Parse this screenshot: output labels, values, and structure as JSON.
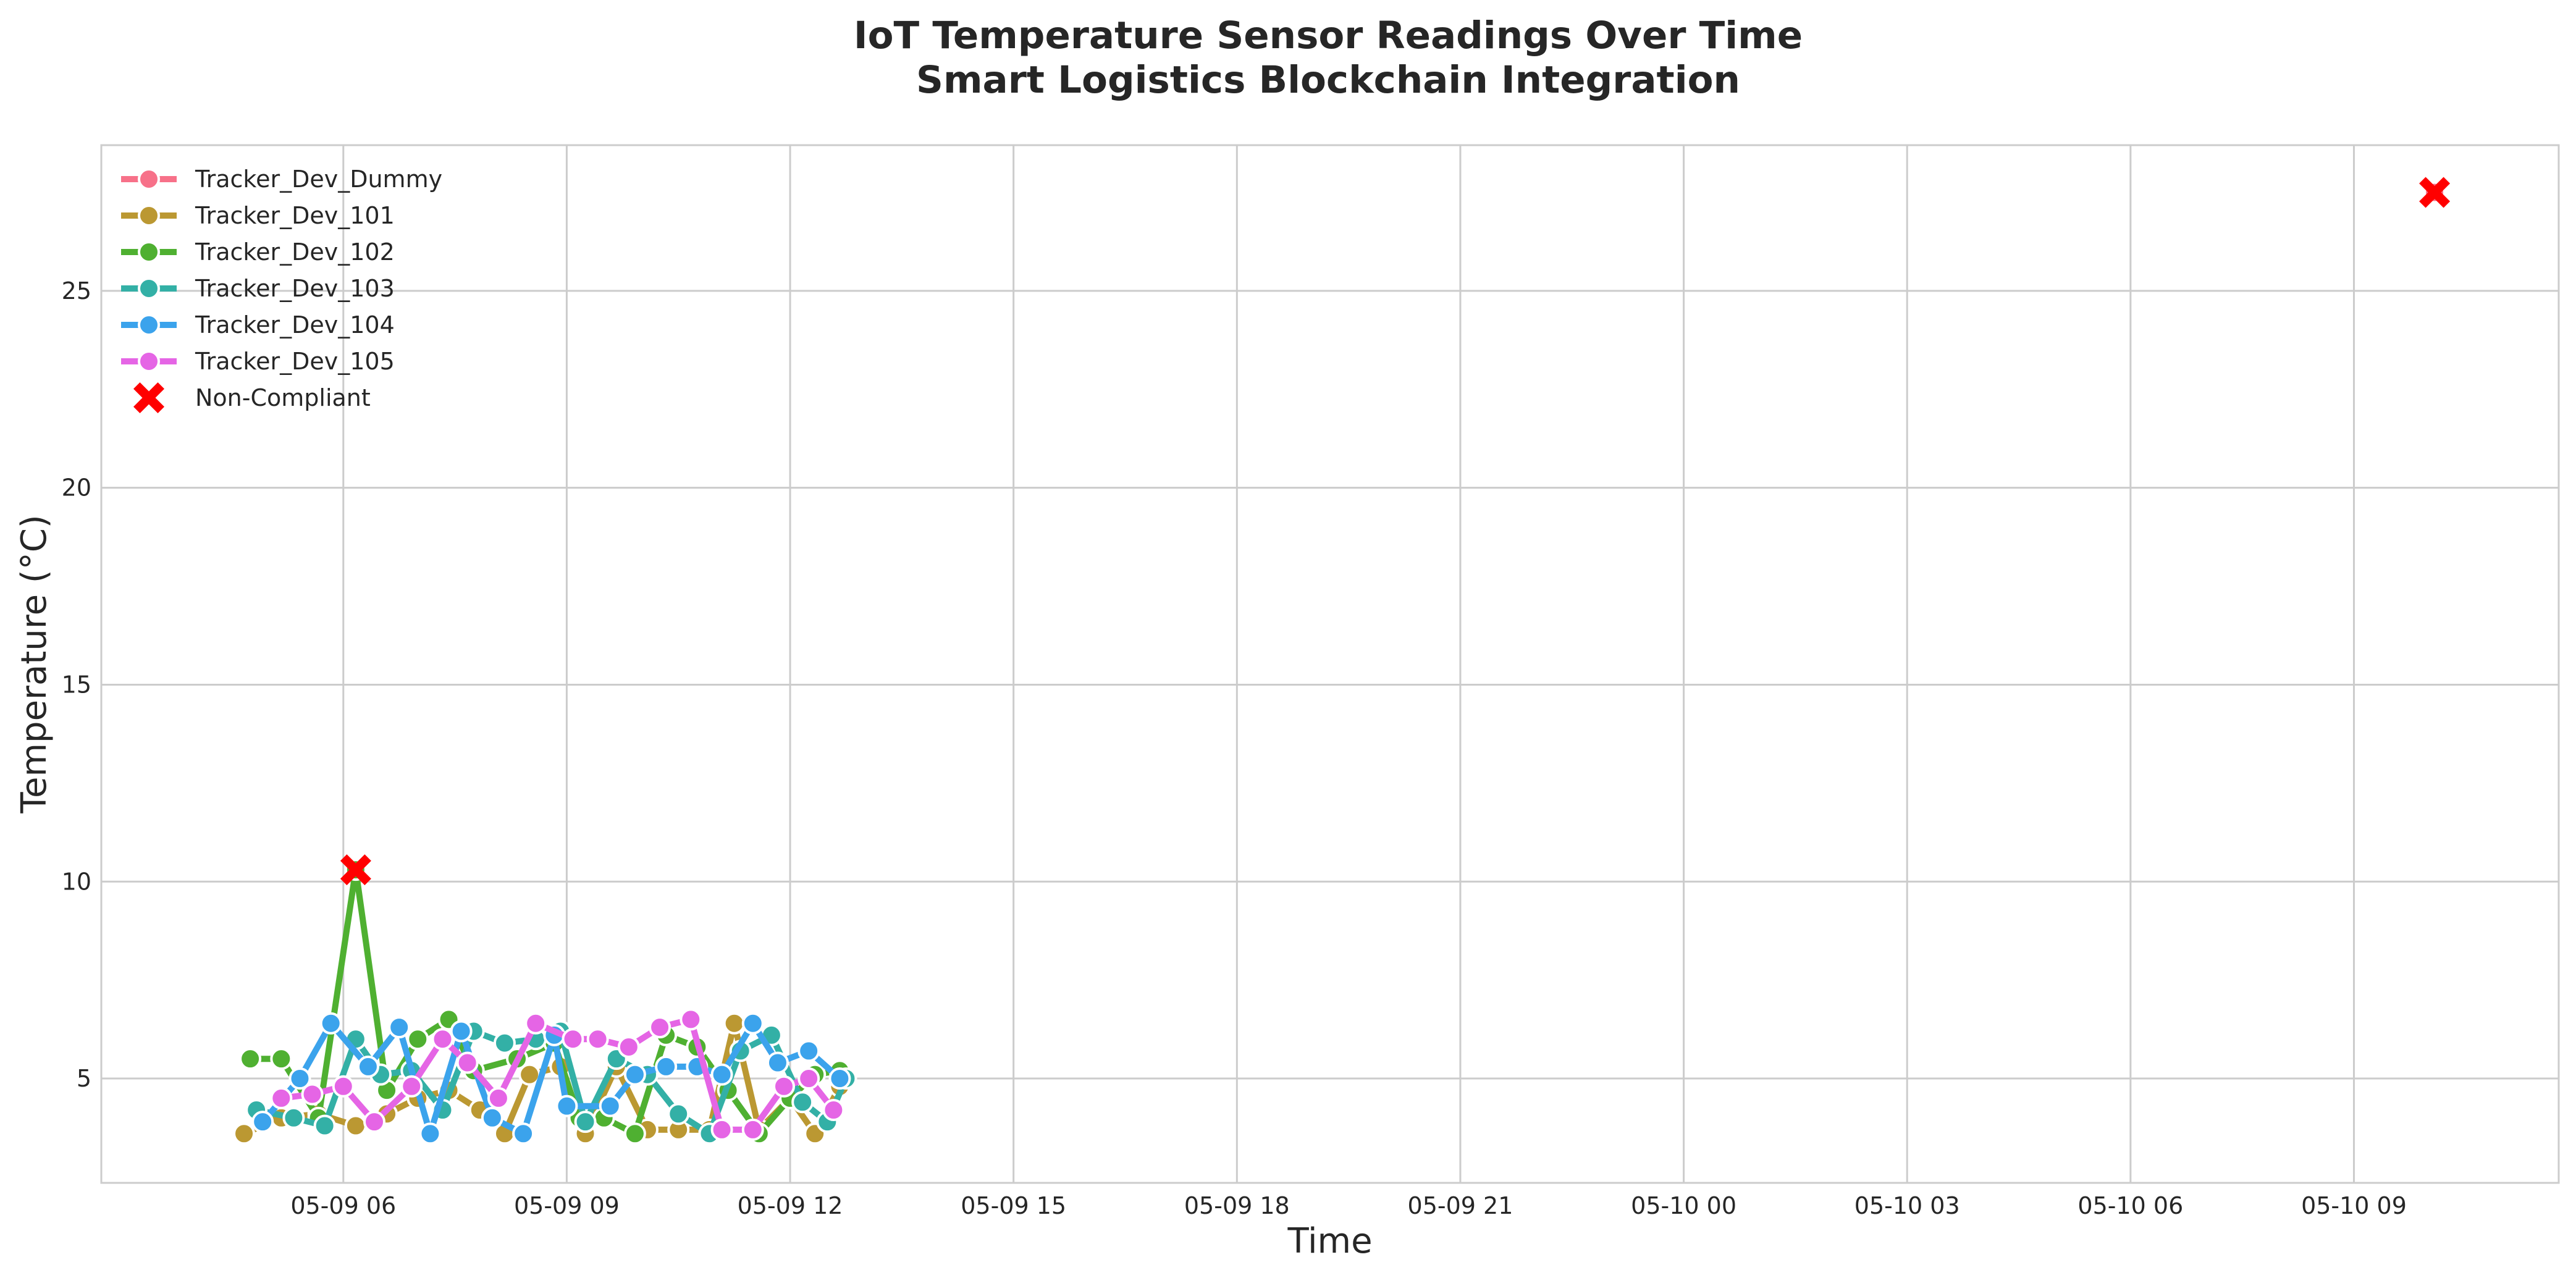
{
  "chart_data": {
    "type": "line",
    "title": [
      "IoT Temperature Sensor Readings Over Time",
      "Smart Logistics Blockchain Integration"
    ],
    "xlabel": "Time",
    "ylabel": "Temperature (°C)",
    "x_range": [
      "2025-05-09 02:45",
      "2025-05-10 11:45"
    ],
    "ylim": [
      2.35,
      28.7
    ],
    "x_ticks": [
      {
        "t": "2025-05-09 06:00",
        "label": "05-09 06"
      },
      {
        "t": "2025-05-09 09:00",
        "label": "05-09 09"
      },
      {
        "t": "2025-05-09 12:00",
        "label": "05-09 12"
      },
      {
        "t": "2025-05-09 15:00",
        "label": "05-09 15"
      },
      {
        "t": "2025-05-09 18:00",
        "label": "05-09 18"
      },
      {
        "t": "2025-05-09 21:00",
        "label": "05-09 21"
      },
      {
        "t": "2025-05-10 00:00",
        "label": "05-10 00"
      },
      {
        "t": "2025-05-10 03:00",
        "label": "05-10 03"
      },
      {
        "t": "2025-05-10 06:00",
        "label": "05-10 06"
      },
      {
        "t": "2025-05-10 09:00",
        "label": "05-10 09"
      }
    ],
    "y_ticks": [
      {
        "v": 5,
        "label": "5"
      },
      {
        "v": 10,
        "label": "10"
      },
      {
        "v": 15,
        "label": "15"
      },
      {
        "v": 20,
        "label": "20"
      },
      {
        "v": 25,
        "label": "25"
      }
    ],
    "grid": true,
    "legend_position": "top-left",
    "series": [
      {
        "name": "Tracker_Dev_Dummy",
        "color": "#f77189",
        "points": [
          {
            "t": "2025-05-10 10:05",
            "y": 27.5
          }
        ]
      },
      {
        "name": "Tracker_Dev_101",
        "color": "#bb9832",
        "points": [
          {
            "t": "2025-05-09 04:40",
            "y": 3.6
          },
          {
            "t": "2025-05-09 05:10",
            "y": 4.0
          },
          {
            "t": "2025-05-09 05:40",
            "y": 4.1
          },
          {
            "t": "2025-05-09 06:10",
            "y": 3.8
          },
          {
            "t": "2025-05-09 06:35",
            "y": 4.1
          },
          {
            "t": "2025-05-09 07:00",
            "y": 4.5
          },
          {
            "t": "2025-05-09 07:25",
            "y": 4.7
          },
          {
            "t": "2025-05-09 07:50",
            "y": 4.2
          },
          {
            "t": "2025-05-09 08:10",
            "y": 3.6
          },
          {
            "t": "2025-05-09 08:30",
            "y": 5.1
          },
          {
            "t": "2025-05-09 08:55",
            "y": 5.3
          },
          {
            "t": "2025-05-09 09:15",
            "y": 3.6
          },
          {
            "t": "2025-05-09 09:40",
            "y": 5.3
          },
          {
            "t": "2025-05-09 10:05",
            "y": 3.7
          },
          {
            "t": "2025-05-09 10:30",
            "y": 3.7
          },
          {
            "t": "2025-05-09 10:55",
            "y": 3.7
          },
          {
            "t": "2025-05-09 11:15",
            "y": 6.4
          },
          {
            "t": "2025-05-09 11:35",
            "y": 3.7
          },
          {
            "t": "2025-05-09 12:00",
            "y": 4.5
          },
          {
            "t": "2025-05-09 12:20",
            "y": 3.6
          },
          {
            "t": "2025-05-09 12:40",
            "y": 4.8
          }
        ]
      },
      {
        "name": "Tracker_Dev_102",
        "color": "#4fb031",
        "points": [
          {
            "t": "2025-05-09 04:45",
            "y": 5.5
          },
          {
            "t": "2025-05-09 05:10",
            "y": 5.5
          },
          {
            "t": "2025-05-09 05:40",
            "y": 4.0
          },
          {
            "t": "2025-05-09 06:10",
            "y": 10.3
          },
          {
            "t": "2025-05-09 06:35",
            "y": 4.7
          },
          {
            "t": "2025-05-09 07:00",
            "y": 6.0
          },
          {
            "t": "2025-05-09 07:25",
            "y": 6.5
          },
          {
            "t": "2025-05-09 07:45",
            "y": 5.2
          },
          {
            "t": "2025-05-09 08:20",
            "y": 5.5
          },
          {
            "t": "2025-05-09 08:50",
            "y": 5.9
          },
          {
            "t": "2025-05-09 09:10",
            "y": 4.0
          },
          {
            "t": "2025-05-09 09:30",
            "y": 4.0
          },
          {
            "t": "2025-05-09 09:55",
            "y": 3.6
          },
          {
            "t": "2025-05-09 10:20",
            "y": 6.1
          },
          {
            "t": "2025-05-09 10:45",
            "y": 5.8
          },
          {
            "t": "2025-05-09 11:10",
            "y": 4.7
          },
          {
            "t": "2025-05-09 11:35",
            "y": 3.6
          },
          {
            "t": "2025-05-09 12:00",
            "y": 4.5
          },
          {
            "t": "2025-05-09 12:20",
            "y": 5.1
          },
          {
            "t": "2025-05-09 12:40",
            "y": 5.2
          }
        ]
      },
      {
        "name": "Tracker_Dev_103",
        "color": "#33b0a6",
        "points": [
          {
            "t": "2025-05-09 04:50",
            "y": 4.2
          },
          {
            "t": "2025-05-09 05:20",
            "y": 4.0
          },
          {
            "t": "2025-05-09 05:45",
            "y": 3.8
          },
          {
            "t": "2025-05-09 06:10",
            "y": 6.0
          },
          {
            "t": "2025-05-09 06:30",
            "y": 5.1
          },
          {
            "t": "2025-05-09 06:55",
            "y": 5.2
          },
          {
            "t": "2025-05-09 07:20",
            "y": 4.2
          },
          {
            "t": "2025-05-09 07:45",
            "y": 6.2
          },
          {
            "t": "2025-05-09 08:10",
            "y": 5.9
          },
          {
            "t": "2025-05-09 08:35",
            "y": 6.0
          },
          {
            "t": "2025-05-09 08:55",
            "y": 6.2
          },
          {
            "t": "2025-05-09 09:15",
            "y": 3.9
          },
          {
            "t": "2025-05-09 09:40",
            "y": 5.5
          },
          {
            "t": "2025-05-09 10:05",
            "y": 5.1
          },
          {
            "t": "2025-05-09 10:30",
            "y": 4.1
          },
          {
            "t": "2025-05-09 10:55",
            "y": 3.6
          },
          {
            "t": "2025-05-09 11:20",
            "y": 5.7
          },
          {
            "t": "2025-05-09 11:45",
            "y": 6.1
          },
          {
            "t": "2025-05-09 12:10",
            "y": 4.4
          },
          {
            "t": "2025-05-09 12:30",
            "y": 3.9
          },
          {
            "t": "2025-05-09 12:45",
            "y": 5.0
          }
        ]
      },
      {
        "name": "Tracker_Dev_104",
        "color": "#3ba3ec",
        "points": [
          {
            "t": "2025-05-09 04:55",
            "y": 3.9
          },
          {
            "t": "2025-05-09 05:25",
            "y": 5.0
          },
          {
            "t": "2025-05-09 05:50",
            "y": 6.4
          },
          {
            "t": "2025-05-09 06:20",
            "y": 5.3
          },
          {
            "t": "2025-05-09 06:45",
            "y": 6.3
          },
          {
            "t": "2025-05-09 07:10",
            "y": 3.6
          },
          {
            "t": "2025-05-09 07:35",
            "y": 6.2
          },
          {
            "t": "2025-05-09 08:00",
            "y": 4.0
          },
          {
            "t": "2025-05-09 08:25",
            "y": 3.6
          },
          {
            "t": "2025-05-09 08:50",
            "y": 6.1
          },
          {
            "t": "2025-05-09 09:00",
            "y": 4.3
          },
          {
            "t": "2025-05-09 09:35",
            "y": 4.3
          },
          {
            "t": "2025-05-09 09:55",
            "y": 5.1
          },
          {
            "t": "2025-05-09 10:20",
            "y": 5.3
          },
          {
            "t": "2025-05-09 10:45",
            "y": 5.3
          },
          {
            "t": "2025-05-09 11:05",
            "y": 5.1
          },
          {
            "t": "2025-05-09 11:30",
            "y": 6.4
          },
          {
            "t": "2025-05-09 11:50",
            "y": 5.4
          },
          {
            "t": "2025-05-09 12:15",
            "y": 5.7
          },
          {
            "t": "2025-05-09 12:40",
            "y": 5.0
          }
        ]
      },
      {
        "name": "Tracker_Dev_105",
        "color": "#e565e5",
        "points": [
          {
            "t": "2025-05-09 05:10",
            "y": 4.5
          },
          {
            "t": "2025-05-09 05:35",
            "y": 4.6
          },
          {
            "t": "2025-05-09 06:00",
            "y": 4.8
          },
          {
            "t": "2025-05-09 06:25",
            "y": 3.9
          },
          {
            "t": "2025-05-09 06:55",
            "y": 4.8
          },
          {
            "t": "2025-05-09 07:20",
            "y": 6.0
          },
          {
            "t": "2025-05-09 07:40",
            "y": 5.4
          },
          {
            "t": "2025-05-09 08:05",
            "y": 4.5
          },
          {
            "t": "2025-05-09 08:35",
            "y": 6.4
          },
          {
            "t": "2025-05-09 09:05",
            "y": 6.0
          },
          {
            "t": "2025-05-09 09:25",
            "y": 6.0
          },
          {
            "t": "2025-05-09 09:50",
            "y": 5.8
          },
          {
            "t": "2025-05-09 10:15",
            "y": 6.3
          },
          {
            "t": "2025-05-09 10:40",
            "y": 6.5
          },
          {
            "t": "2025-05-09 11:05",
            "y": 3.7
          },
          {
            "t": "2025-05-09 11:30",
            "y": 3.7
          },
          {
            "t": "2025-05-09 11:55",
            "y": 4.8
          },
          {
            "t": "2025-05-09 12:15",
            "y": 5.0
          },
          {
            "t": "2025-05-09 12:35",
            "y": 4.2
          }
        ]
      }
    ],
    "non_compliant": {
      "name": "Non-Compliant",
      "color": "#ff0000",
      "points": [
        {
          "t": "2025-05-09 06:10",
          "y": 10.3
        },
        {
          "t": "2025-05-10 10:05",
          "y": 27.5
        }
      ]
    }
  }
}
